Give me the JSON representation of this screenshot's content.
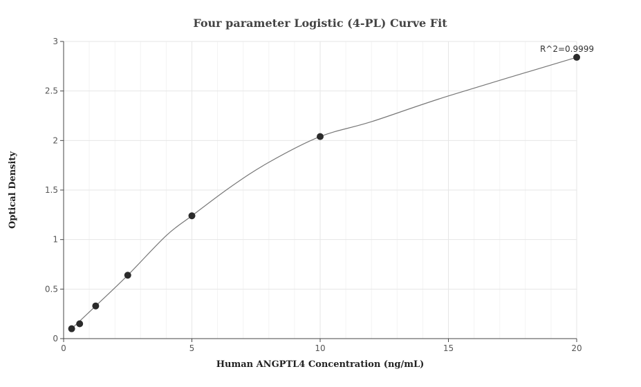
{
  "chart_data": {
    "type": "scatter",
    "title": "Four parameter Logistic (4-PL) Curve Fit",
    "xlabel": "Human ANGPTL4 Concentration (ng/mL)",
    "ylabel": "Optical Density",
    "xlim": [
      0,
      20
    ],
    "ylim": [
      0,
      3
    ],
    "xticks": [
      0,
      5,
      10,
      15,
      20
    ],
    "yticks": [
      0,
      0.5,
      1,
      1.5,
      2,
      2.5,
      3
    ],
    "grid": true,
    "annotation": "R^2=0.9999",
    "series": [
      {
        "points": [
          {
            "x": 0.3125,
            "y": 0.1
          },
          {
            "x": 0.625,
            "y": 0.15
          },
          {
            "x": 1.25,
            "y": 0.33
          },
          {
            "x": 2.5,
            "y": 0.64
          },
          {
            "x": 5,
            "y": 1.24
          },
          {
            "x": 10,
            "y": 2.04
          },
          {
            "x": 20,
            "y": 2.84
          }
        ]
      }
    ],
    "fit_curve": [
      {
        "x": 0.3125,
        "y": 0.1
      },
      {
        "x": 1.25,
        "y": 0.33
      },
      {
        "x": 2.5,
        "y": 0.64
      },
      {
        "x": 4,
        "y": 1.04
      },
      {
        "x": 5,
        "y": 1.24
      },
      {
        "x": 6.5,
        "y": 1.53
      },
      {
        "x": 8,
        "y": 1.78
      },
      {
        "x": 10,
        "y": 2.04
      },
      {
        "x": 12,
        "y": 2.19
      },
      {
        "x": 15,
        "y": 2.45
      },
      {
        "x": 20,
        "y": 2.84
      }
    ]
  }
}
